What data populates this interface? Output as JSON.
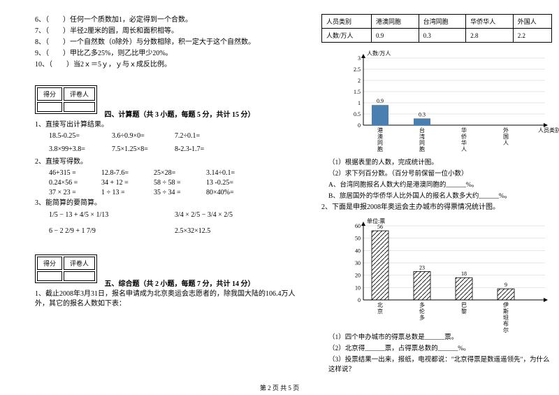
{
  "left": {
    "tf_questions": [
      "6、（　　）任何一个质数加1，必定得到一个合数。",
      "7、（　　）半径2厘米的圆，周长和面积相等。",
      "8、（　　）一个自然数（0除外）与分数相除，积一定大于这个自然数。",
      "9、（　　）甲比乙多25%，则乙比甲少20%。",
      "10、（　　）当2ｘ＝5ｙ，ｙ与ｘ成反比例。"
    ],
    "scorebox": {
      "h1": "得分",
      "h2": "评卷人"
    },
    "sec4_title": "四、计算题（共 3 小题，每题 5 分，共计 15 分）",
    "q1_label": "1、直接写出计算结果。",
    "calc1": [
      [
        "18.5-0.25=",
        "3.6÷0.9×0=",
        "7.2÷0.1="
      ],
      [
        "3.8×99+3.8=",
        "7.5×1.25×8=",
        "8-2.3-1.7="
      ]
    ],
    "q2_label": "2、直接写得数。",
    "calc2": [
      [
        "46+315 =",
        "12.8-7.6=",
        "25×28=",
        "3.14÷0.1="
      ],
      [
        "0.24×56 =",
        "34 + 12 =",
        "58 ÷ 58 =",
        "13 -0.25="
      ],
      [
        "37 × 23 =",
        "1 ÷ 13 =",
        "35 ÷ 34 =",
        "80×40%="
      ]
    ],
    "q3_label": "3、能简算的要简算。",
    "frac_exprs": [
      [
        "1/5 − 13 + 4/5 × 1/13",
        "3/4 × 2/5 − 3/4 × 2/5"
      ],
      [
        "6 − 2 2/9 + 1 7/9",
        "2.5×32×12.5"
      ]
    ],
    "sec5_title": "五、综合题（共 2 小题，每题 7 分，共计 14 分）",
    "q5_1": "1、截止2008年3月31日，报名申请成为北京奥运会志愿者的，除我国大陆的106.4万人外，其它的报名人数如下表："
  },
  "right": {
    "table": {
      "headers": [
        "人员类别",
        "港澳同胞",
        "台湾同胞",
        "华侨华人",
        "外国人"
      ],
      "row": [
        "人数/万人",
        "0.9",
        "0.3",
        "2.8",
        "2.2"
      ]
    },
    "chart1": {
      "ylabel": "人数/万人",
      "xlabel": "人员类别",
      "yticks": [
        "0",
        "0.5",
        "1",
        "1.5",
        "2",
        "2.5",
        "3"
      ],
      "cats": [
        "港澳同胞",
        "台湾同胞",
        "华侨华人",
        "外国人"
      ],
      "bars": [
        {
          "label": "0.9",
          "value": 0.9,
          "color": "#4a7fb0"
        },
        {
          "label": "0.3",
          "value": 0.3,
          "color": "#4a7fb0"
        }
      ],
      "grid_color": "#ccc",
      "axis_color": "#000",
      "height": 110,
      "ymax": 3
    },
    "sub1": [
      "（1）根据表里的人数，完成统计图。",
      "（2）求下列百分数。（百分号前保留一位小数）",
      "A、台湾同胞报名人数大约是港澳同胞的______%。",
      "B、旅居国外的华侨华人比外国人的报名人数多大约______%。"
    ],
    "q2_label": "2、下面是申报2008年奥运会主办城市的得票情况统计图。",
    "chart2": {
      "ylabel": "单位:票",
      "yticks": [
        "0",
        "10",
        "20",
        "30",
        "40",
        "50",
        "60"
      ],
      "cats": [
        "北京",
        "多伦多",
        "巴黎",
        "伊斯坦布尔"
      ],
      "bars": [
        {
          "label": "56",
          "value": 56
        },
        {
          "label": "23",
          "value": 23
        },
        {
          "label": "18",
          "value": 18
        },
        {
          "label": "9",
          "value": 9
        }
      ],
      "bar_fill": "hatch",
      "grid_color": "#ccc",
      "axis_color": "#000",
      "height": 120,
      "ymax": 60
    },
    "sub2": [
      "（1）四个申办城市的得票总数是______票。",
      "（2）北京得______票，占得票总数的______%。",
      "（3）投票结果一出来，报纸，电视都说：\"北京得票是数遥遥领先\"，为什么这样说？"
    ]
  },
  "footer": "第 2 页 共 5 页"
}
